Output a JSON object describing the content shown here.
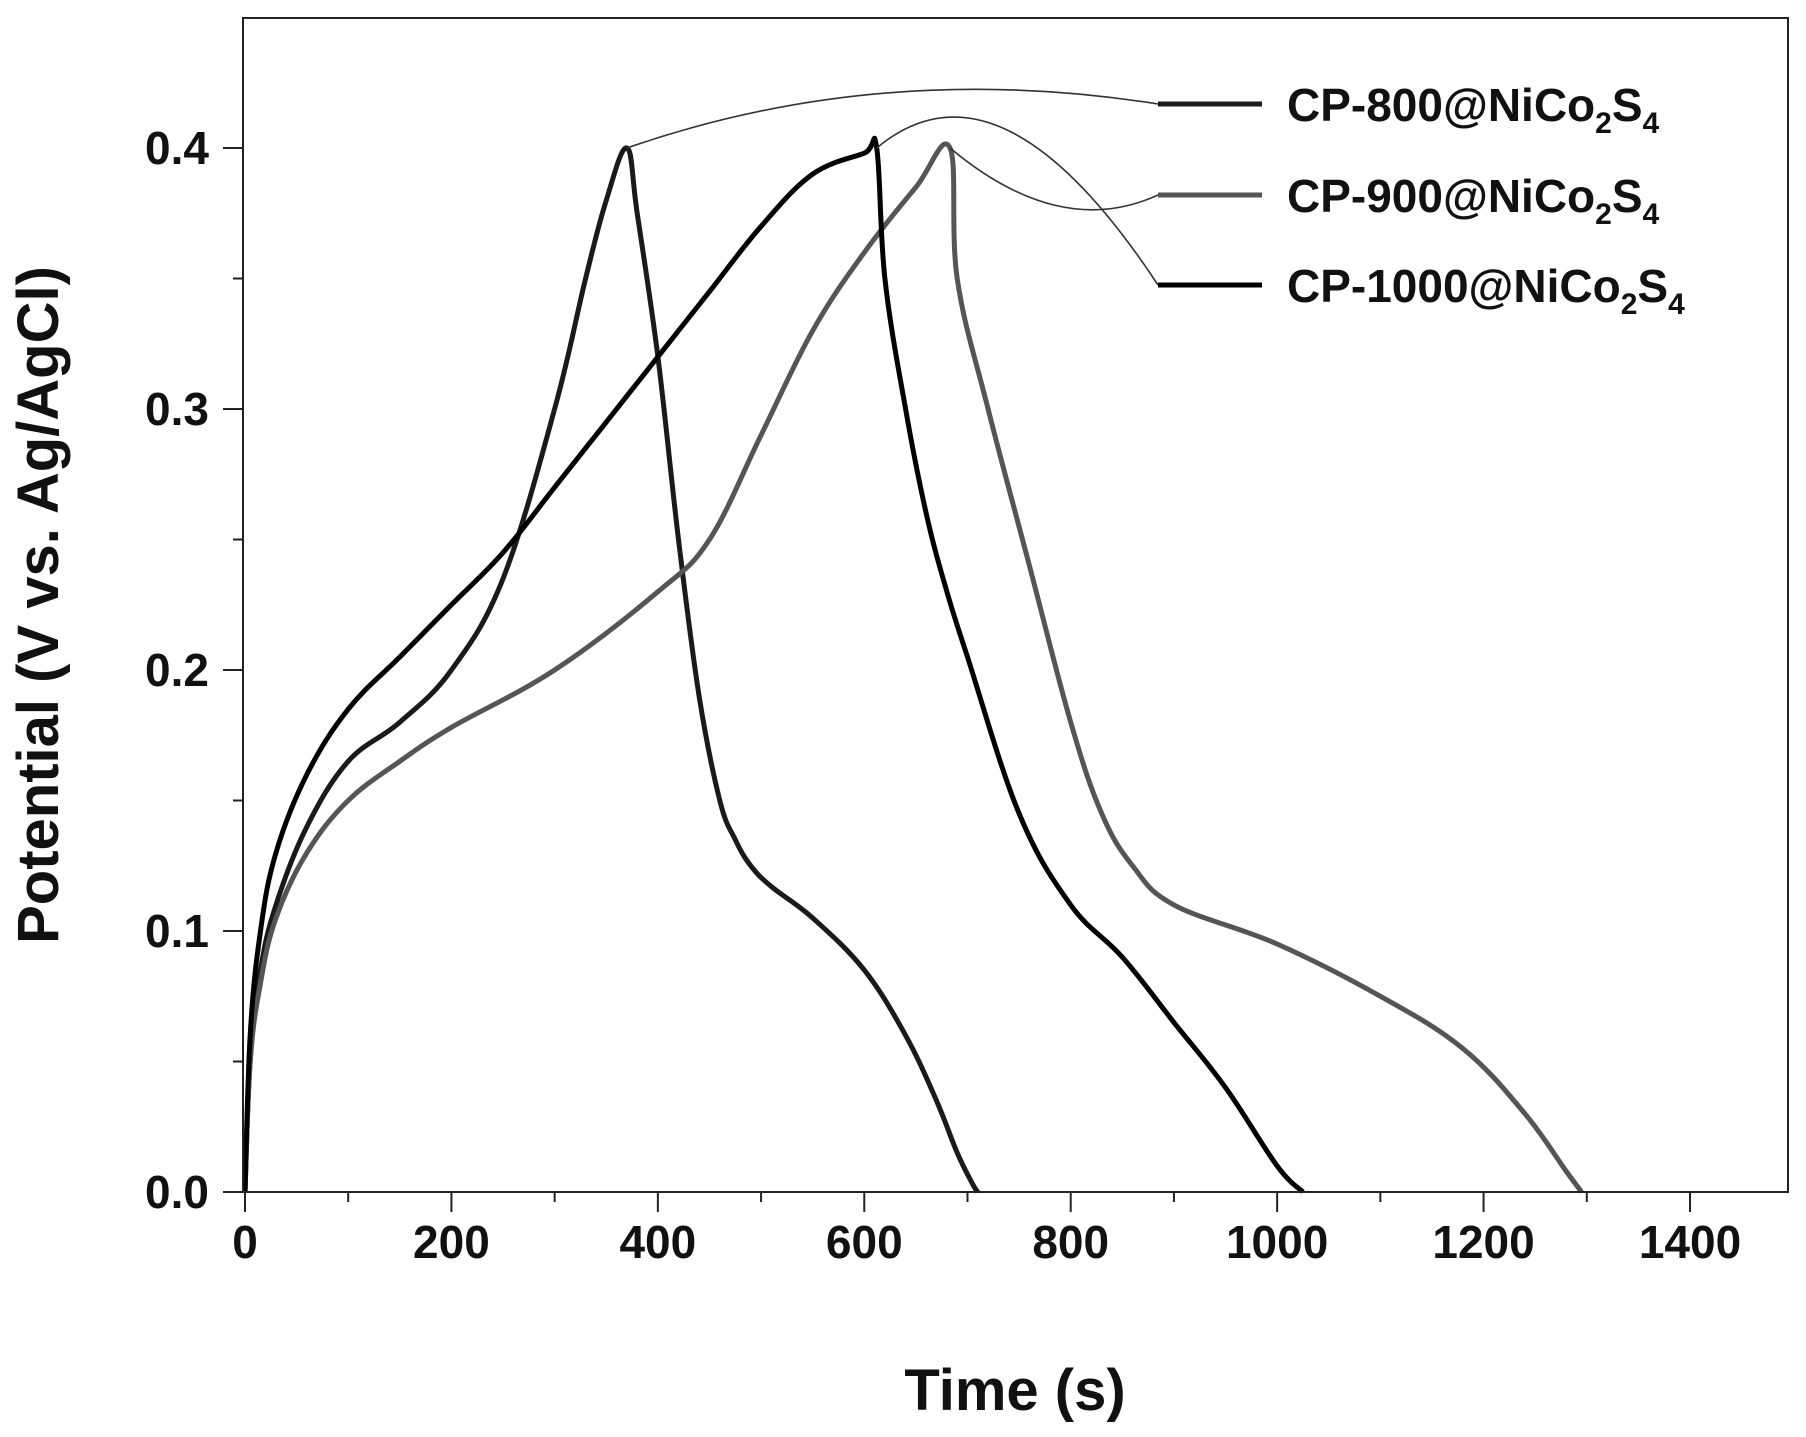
{
  "chart_data": {
    "type": "line",
    "title": "",
    "xlabel": "Time (s)",
    "ylabel": "Potential (V vs. Ag/AgCl)",
    "xlim": [
      0,
      1500
    ],
    "ylim": [
      0,
      0.45
    ],
    "xticks": [
      0,
      200,
      400,
      600,
      800,
      1000,
      1200,
      1400
    ],
    "xtick_labels": [
      "0",
      "200",
      "400",
      "600",
      "800",
      "1000",
      "1200",
      "1400"
    ],
    "yticks": [
      0.0,
      0.1,
      0.2,
      0.3,
      0.4
    ],
    "ytick_labels": [
      "0.0",
      "0.1",
      "0.2",
      "0.3",
      "0.4"
    ],
    "grid": false,
    "legend_position": "top-right",
    "series": [
      {
        "name": "CP-800@NiCo2S4",
        "label_main": "CP-800@NiCo",
        "label_sub1": "2",
        "label_mid": "S",
        "label_sub2": "4",
        "color": "#1a1a1a",
        "x": [
          0,
          5,
          15,
          30,
          60,
          100,
          150,
          200,
          250,
          300,
          330,
          350,
          370,
          380,
          400,
          420,
          440,
          460,
          475,
          490,
          510,
          550,
          600,
          640,
          670,
          690,
          705,
          710
        ],
        "y": [
          0.0,
          0.05,
          0.085,
          0.11,
          0.14,
          0.165,
          0.18,
          0.2,
          0.235,
          0.3,
          0.35,
          0.38,
          0.4,
          0.375,
          0.32,
          0.25,
          0.19,
          0.15,
          0.135,
          0.125,
          0.117,
          0.105,
          0.085,
          0.06,
          0.035,
          0.015,
          0.003,
          0.0
        ]
      },
      {
        "name": "CP-900@NiCo2S4",
        "label_main": "CP-900@NiCo",
        "label_sub1": "2",
        "label_mid": "S",
        "label_sub2": "4",
        "color": "#555555",
        "x": [
          0,
          5,
          15,
          30,
          60,
          100,
          150,
          200,
          300,
          400,
          450,
          500,
          550,
          600,
          650,
          683,
          690,
          720,
          760,
          800,
          830,
          860,
          900,
          1000,
          1100,
          1180,
          1240,
          1280,
          1295
        ],
        "y": [
          0.0,
          0.05,
          0.08,
          0.105,
          0.13,
          0.15,
          0.165,
          0.178,
          0.2,
          0.23,
          0.25,
          0.29,
          0.33,
          0.36,
          0.385,
          0.4,
          0.35,
          0.3,
          0.24,
          0.18,
          0.145,
          0.125,
          0.11,
          0.095,
          0.075,
          0.055,
          0.03,
          0.008,
          0.0
        ]
      },
      {
        "name": "CP-1000@NiCo2S4",
        "label_main": "CP-1000@NiCo",
        "label_sub1": "2",
        "label_mid": "S",
        "label_sub2": "4",
        "color": "#000000",
        "x": [
          0,
          5,
          15,
          30,
          60,
          100,
          150,
          200,
          250,
          300,
          350,
          400,
          450,
          500,
          550,
          600,
          612,
          620,
          640,
          660,
          680,
          700,
          750,
          800,
          850,
          900,
          950,
          1000,
          1025
        ],
        "y": [
          0.0,
          0.06,
          0.1,
          0.13,
          0.16,
          0.185,
          0.205,
          0.225,
          0.245,
          0.27,
          0.295,
          0.32,
          0.345,
          0.37,
          0.39,
          0.398,
          0.4,
          0.35,
          0.3,
          0.26,
          0.23,
          0.205,
          0.145,
          0.11,
          0.09,
          0.065,
          0.04,
          0.01,
          0.0
        ]
      }
    ]
  }
}
